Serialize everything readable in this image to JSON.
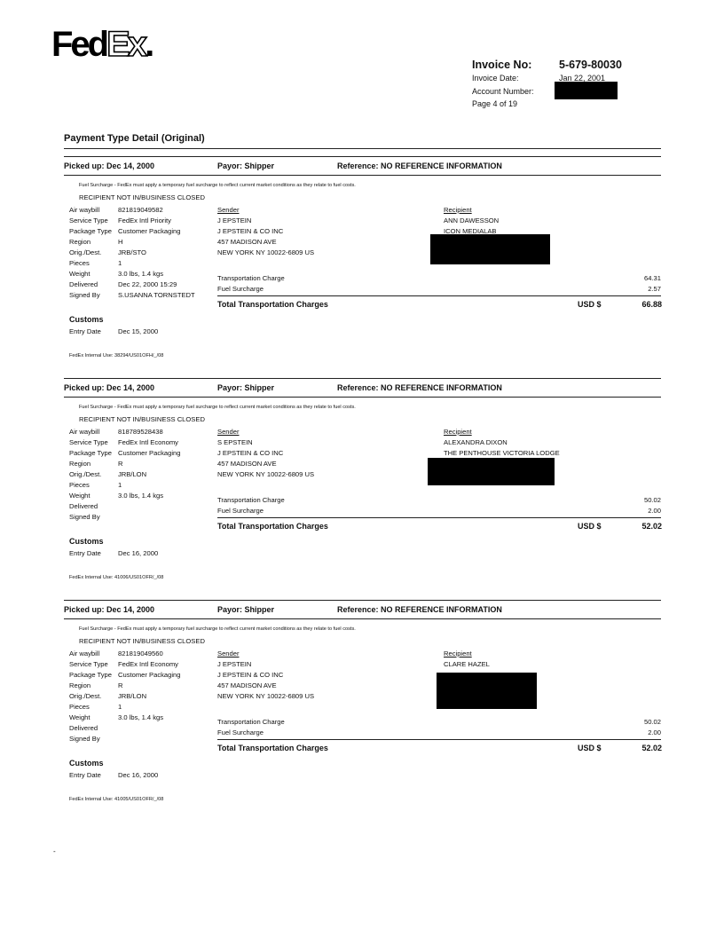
{
  "logo": {
    "text_fed": "Fed",
    "text_ex": "Ex",
    "text_dot": "."
  },
  "header": {
    "invoice_no_label": "Invoice No:",
    "invoice_no": "5-679-80030",
    "invoice_date_label": "Invoice Date:",
    "invoice_date": "Jan 22, 2001",
    "account_number_label": "Account Number:",
    "page": "Page 4 of 19"
  },
  "title": "Payment Type Detail (Original)",
  "labels": {
    "air_waybill": "Air waybill",
    "service_type": "Service Type",
    "package_type": "Package Type",
    "region": "Region",
    "orig_dest": "Orig./Dest.",
    "pieces": "Pieces",
    "weight": "Weight",
    "delivered": "Delivered",
    "signed_by": "Signed By",
    "sender": "Sender",
    "recipient": "Recipient",
    "transportation_charge": "Transportation Charge",
    "fuel_surcharge": "Fuel Surcharge",
    "total": "Total Transportation Charges",
    "currency": "USD $",
    "customs": "Customs",
    "entry_date": "Entry Date"
  },
  "shipments": [
    {
      "picked_up": "Picked up: Dec 14, 2000",
      "payor": "Payor: Shipper",
      "reference": "Reference: NO REFERENCE INFORMATION",
      "note1": "Fuel Surcharge - FedEx must apply a temporary fuel surcharge to reflect current market conditions as they relate to fuel costs.",
      "note2": "RECIPIENT NOT IN/BUSINESS CLOSED",
      "air_waybill": "821819049582",
      "service_type": "FedEx Intl Priority",
      "package_type": "Customer Packaging",
      "region": "H",
      "orig_dest": "JRB/STO",
      "pieces": "1",
      "weight": "3.0 lbs, 1.4 kgs",
      "delivered": "Dec 22, 2000 15:29",
      "signed_by": "S.USANNA TORNSTEDT",
      "sender": [
        "J EPSTEIN",
        "J EPSTEIN & CO INC",
        "457 MADISON AVE",
        "NEW YORK NY 10022-6809  US"
      ],
      "recipient": [
        "ANN DAWESSON",
        "ICON MEDIALAB"
      ],
      "transportation_charge": "64.31",
      "fuel_surcharge": "2.57",
      "total": "66.88",
      "entry_date": "Dec 15, 2000",
      "internal_use": "FedEx Internal Use: 38294/US01OFH/_/08"
    },
    {
      "picked_up": "Picked up: Dec 14, 2000",
      "payor": "Payor: Shipper",
      "reference": "Reference: NO REFERENCE INFORMATION",
      "note1": "Fuel Surcharge - FedEx must apply a temporary fuel surcharge to reflect current market conditions as they relate to fuel costs.",
      "note2": "RECIPIENT NOT IN/BUSINESS CLOSED",
      "air_waybill": "818789528438",
      "service_type": "FedEx Intl Economy",
      "package_type": "Customer Packaging",
      "region": "R",
      "orig_dest": "JRB/LON",
      "pieces": "1",
      "weight": "3.0 lbs, 1.4 kgs",
      "delivered": "",
      "signed_by": "",
      "sender": [
        "S EPSTEIN",
        "J EPSTEIN & CO INC",
        "457 MADISON AVE",
        "NEW YORK NY 10022-6809  US"
      ],
      "recipient": [
        "ALEXANDRA DIXON",
        "THE PENTHOUSE VICTORIA LODGE"
      ],
      "transportation_charge": "50.02",
      "fuel_surcharge": "2.00",
      "total": "52.02",
      "entry_date": "Dec 16, 2000",
      "internal_use": "FedEx Internal Use: 41006/US01OFR/_/08"
    },
    {
      "picked_up": "Picked up: Dec 14, 2000",
      "payor": "Payor: Shipper",
      "reference": "Reference: NO REFERENCE INFORMATION",
      "note1": "Fuel Surcharge - FedEx must apply a temporary fuel surcharge to reflect current market conditions as they relate to fuel costs.",
      "note2": "RECIPIENT NOT IN/BUSINESS CLOSED",
      "air_waybill": "821819049560",
      "service_type": "FedEx Intl Economy",
      "package_type": "Customer Packaging",
      "region": "R",
      "orig_dest": "JRB/LON",
      "pieces": "1",
      "weight": "3.0 lbs, 1.4 kgs",
      "delivered": "",
      "signed_by": "",
      "sender": [
        "J EPSTEIN",
        "J EPSTEIN & CO INC",
        "457 MADISON AVE",
        "NEW YORK NY 10022-6809  US"
      ],
      "recipient": [
        "CLARE HAZEL"
      ],
      "transportation_charge": "50.02",
      "fuel_surcharge": "2.00",
      "total": "52.02",
      "entry_date": "Dec 16, 2000",
      "internal_use": "FedEx Internal Use: 41005/US01OFR/_/08"
    }
  ],
  "footer_mark": "-"
}
